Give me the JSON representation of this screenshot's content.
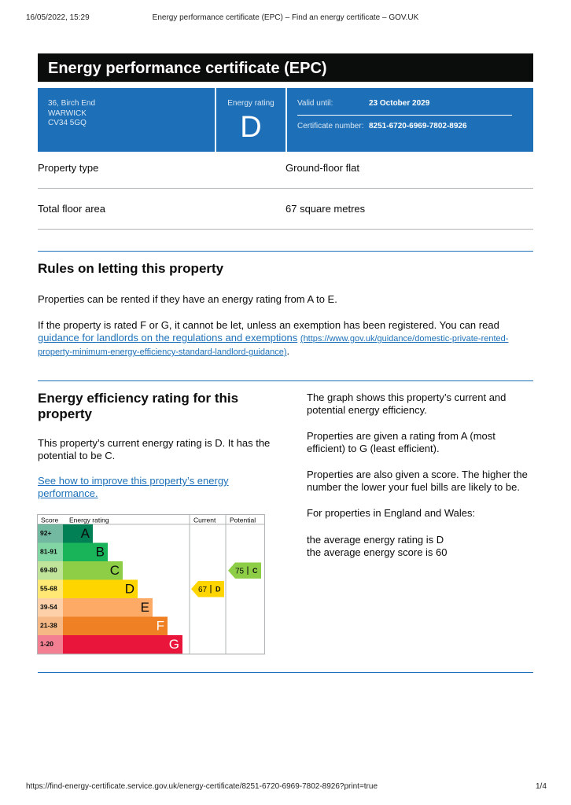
{
  "browser_header": {
    "datetime": "16/05/2022, 15:29",
    "page_title": "Energy performance certificate (EPC) – Find an energy certificate – GOV.UK"
  },
  "title": "Energy performance certificate (EPC)",
  "summary": {
    "address": [
      "36, Birch End",
      "WARWICK",
      "CV34 5GQ"
    ],
    "rating_label": "Energy rating",
    "rating": "D",
    "valid_until_label": "Valid until:",
    "valid_until": "23 October 2029",
    "certificate_number_label": "Certificate number:",
    "certificate_number": "8251-6720-6969-7802-8926"
  },
  "property_table": {
    "rows": [
      [
        "Property type",
        "Ground-floor flat"
      ],
      [
        "Total floor area",
        "67 square metres"
      ]
    ]
  },
  "rules": {
    "heading": "Rules on letting this property",
    "paragraph": "Properties can be rented if they have an energy rating from A to E.",
    "link_intro": "If the property is rated F or G, it cannot be let, unless an exemption has been registered. You can read",
    "link_text": "guidance for landlords on the regulations and exemptions",
    "link_url": "(https://www.gov.uk/guidance/domestic-private-rented-property-minimum-energy-efficiency-standard-landlord-guidance)",
    "link_end": "."
  },
  "efficiency": {
    "heading": "Energy efficiency rating for this property",
    "current_text": "This property’s current energy rating is D. It has the potential to be C.",
    "improve_link": "See how to improve this property’s energy performance.",
    "chart": {
      "headers": [
        "Score",
        "Energy rating",
        "Current",
        "Potential"
      ],
      "bands": [
        {
          "score": "92+",
          "letter": "A",
          "color": "#008054"
        },
        {
          "score": "81-91",
          "letter": "B",
          "color": "#19b459"
        },
        {
          "score": "69-80",
          "letter": "C",
          "color": "#8dce46"
        },
        {
          "score": "55-68",
          "letter": "D",
          "color": "#ffd500"
        },
        {
          "score": "39-54",
          "letter": "E",
          "color": "#fcaa65"
        },
        {
          "score": "21-38",
          "letter": "F",
          "color": "#ef8023"
        },
        {
          "score": "1-20",
          "letter": "G",
          "color": "#e9153b"
        }
      ],
      "current": {
        "score": 67,
        "letter": "D"
      },
      "potential": {
        "score": 75,
        "letter": "C"
      }
    },
    "notes": [
      "The graph shows this property’s current and potential energy efficiency.",
      "Properties are given a rating from A (most efficient) to G (least efficient).",
      "Properties are also given a score. The higher the number the lower your fuel bills are likely to be.",
      "For properties in England and Wales:"
    ],
    "averages": [
      "the average energy rating is D",
      "the average energy score is 60"
    ]
  },
  "footer": {
    "url": "https://find-energy-certificate.service.gov.uk/energy-certificate/8251-6720-6969-7802-8926?print=true",
    "page": "1/4"
  }
}
